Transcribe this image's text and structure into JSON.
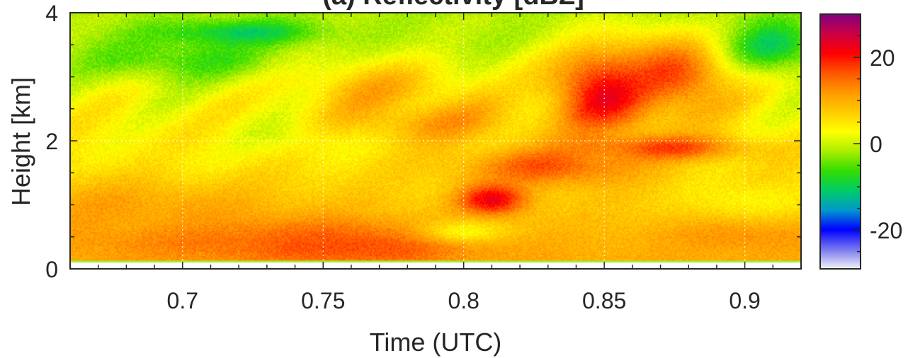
{
  "chart_data": {
    "type": "heatmap",
    "title": "(a) Reflectivity [dBZ]",
    "xlabel": "Time (UTC)",
    "ylabel": "Height [km]",
    "xlim": [
      0.66,
      0.92
    ],
    "ylim": [
      0,
      4
    ],
    "xticks": [
      0.7,
      0.75,
      0.8,
      0.85,
      0.9
    ],
    "xtick_labels": [
      "0.7",
      "0.75",
      "0.8",
      "0.85",
      "0.9"
    ],
    "yticks": [
      0,
      2,
      4
    ],
    "ytick_labels": [
      "0",
      "2",
      "4"
    ],
    "colorbar": {
      "range": [
        -29,
        30
      ],
      "ticks": [
        -20,
        0,
        20
      ],
      "tick_labels": [
        "-20",
        "0",
        "20"
      ]
    },
    "colormap": [
      "#f2f2f8",
      "#7777ee",
      "#0000ff",
      "#0099cc",
      "#00cc66",
      "#33dd00",
      "#aaee00",
      "#ffff00",
      "#ffcc00",
      "#ff9900",
      "#ff5500",
      "#ff0000",
      "#cc0044",
      "#800080"
    ],
    "grid": true,
    "features": [
      {
        "x": 0.72,
        "y": 0.5,
        "z": 15,
        "sx": 0.06,
        "sy": 0.35
      },
      {
        "x": 0.76,
        "y": 0.35,
        "z": 17,
        "sx": 0.04,
        "sy": 0.3
      },
      {
        "x": 0.68,
        "y": 0.9,
        "z": 11,
        "sx": 0.05,
        "sy": 0.45
      },
      {
        "x": 0.7,
        "y": 1.9,
        "z": 4,
        "sx": 0.03,
        "sy": 0.35
      },
      {
        "x": 0.7,
        "y": 3.3,
        "z": -6,
        "sx": 0.04,
        "sy": 0.35
      },
      {
        "x": 0.72,
        "y": 3.7,
        "z": -10,
        "sx": 0.03,
        "sy": 0.2
      },
      {
        "x": 0.74,
        "y": 2.1,
        "z": 1,
        "sx": 0.02,
        "sy": 0.3
      },
      {
        "x": 0.77,
        "y": 2.8,
        "z": 9,
        "sx": 0.03,
        "sy": 0.45
      },
      {
        "x": 0.79,
        "y": 2.3,
        "z": 11,
        "sx": 0.03,
        "sy": 0.35
      },
      {
        "x": 0.81,
        "y": 1.1,
        "z": 22,
        "sx": 0.012,
        "sy": 0.25
      },
      {
        "x": 0.8,
        "y": 0.6,
        "z": 3,
        "sx": 0.015,
        "sy": 0.18
      },
      {
        "x": 0.83,
        "y": 1.6,
        "z": 16,
        "sx": 0.03,
        "sy": 0.3
      },
      {
        "x": 0.85,
        "y": 2.8,
        "z": 22,
        "sx": 0.02,
        "sy": 0.7
      },
      {
        "x": 0.875,
        "y": 3.0,
        "z": 17,
        "sx": 0.02,
        "sy": 0.6
      },
      {
        "x": 0.87,
        "y": 1.9,
        "z": 17,
        "sx": 0.03,
        "sy": 0.2
      },
      {
        "x": 0.9,
        "y": 1.1,
        "z": 3,
        "sx": 0.02,
        "sy": 0.3
      },
      {
        "x": 0.91,
        "y": 3.5,
        "z": -10,
        "sx": 0.015,
        "sy": 0.4
      },
      {
        "x": 0.8,
        "y": 3.7,
        "z": -1,
        "sx": 0.03,
        "sy": 0.3
      },
      {
        "x": 0.9,
        "y": 0.5,
        "z": 12,
        "sx": 0.03,
        "sy": 0.25
      }
    ]
  }
}
